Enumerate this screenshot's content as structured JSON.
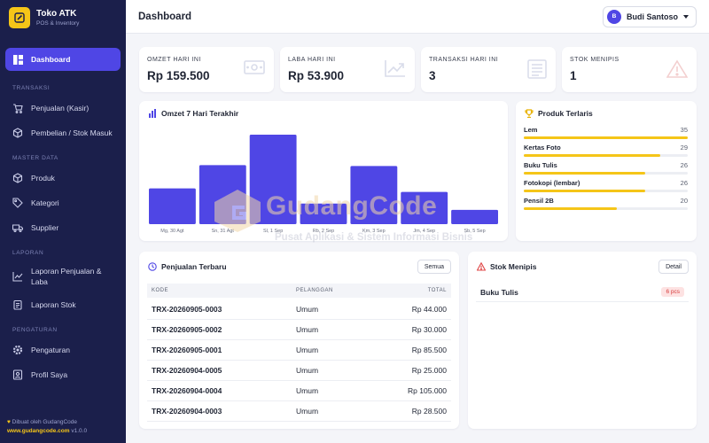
{
  "brand": {
    "name": "Toko ATK",
    "subtitle": "POS & Inventory"
  },
  "sidebar": {
    "dashboard": "Dashboard",
    "sections": {
      "transaksi": "TRANSAKSI",
      "master": "MASTER DATA",
      "laporan": "LAPORAN",
      "pengaturan": "PENGATURAN"
    },
    "items": {
      "penjualan": "Penjualan (Kasir)",
      "pembelian": "Pembelian / Stok Masuk",
      "produk": "Produk",
      "kategori": "Kategori",
      "supplier": "Supplier",
      "laporan_penjualan": "Laporan Penjualan & Laba",
      "laporan_stok": "Laporan Stok",
      "pengaturan": "Pengaturan",
      "profil": "Profil Saya"
    },
    "footer": {
      "made_by": "Dibuat oleh GudangCode",
      "link": "www.gudangcode.com",
      "version": "v1.0.0"
    }
  },
  "topbar": {
    "title": "Dashboard",
    "user_initial": "B",
    "user_name": "Budi Santoso"
  },
  "stats": [
    {
      "label": "OMZET HARI INI",
      "value": "Rp 159.500",
      "icon": "cash-icon"
    },
    {
      "label": "LABA HARI INI",
      "value": "Rp 53.900",
      "icon": "trend-icon"
    },
    {
      "label": "TRANSAKSI HARI INI",
      "value": "3",
      "icon": "receipt-icon"
    },
    {
      "label": "STOK MENIPIS",
      "value": "1",
      "icon": "warning-icon"
    }
  ],
  "omzet_chart": {
    "title": "Omzet 7 Hari Terakhir"
  },
  "chart_data": {
    "type": "bar",
    "categories": [
      "Mg, 30 Agt",
      "Sn, 31 Agt",
      "Sl, 1 Sep",
      "Rb, 2 Sep",
      "Km, 3 Sep",
      "Jm, 4 Sep",
      "Sb, 5 Sep"
    ],
    "values": [
      40,
      66,
      100,
      23,
      65,
      36,
      16
    ],
    "grid": false,
    "color": "#4f46e5"
  },
  "top_products": {
    "title": "Produk Terlaris",
    "items": [
      {
        "name": "Lem",
        "count": "35",
        "fraction": 1.0
      },
      {
        "name": "Kertas Foto",
        "count": "29",
        "fraction": 0.83
      },
      {
        "name": "Buku Tulis",
        "count": "26",
        "fraction": 0.74
      },
      {
        "name": "Fotokopi (lembar)",
        "count": "26",
        "fraction": 0.74
      },
      {
        "name": "Pensil 2B",
        "count": "20",
        "fraction": 0.57
      }
    ]
  },
  "sales": {
    "title": "Penjualan Terbaru",
    "button": "Semua",
    "columns": [
      "KODE",
      "PELANGGAN",
      "TOTAL"
    ],
    "rows": [
      {
        "code": "TRX-20260905-0003",
        "customer": "Umum",
        "total": "Rp 44.000"
      },
      {
        "code": "TRX-20260905-0002",
        "customer": "Umum",
        "total": "Rp 30.000"
      },
      {
        "code": "TRX-20260905-0001",
        "customer": "Umum",
        "total": "Rp 85.500"
      },
      {
        "code": "TRX-20260904-0005",
        "customer": "Umum",
        "total": "Rp 25.000"
      },
      {
        "code": "TRX-20260904-0004",
        "customer": "Umum",
        "total": "Rp 105.000"
      },
      {
        "code": "TRX-20260904-0003",
        "customer": "Umum",
        "total": "Rp 28.500"
      }
    ]
  },
  "low_stock": {
    "title": "Stok Menipis",
    "button": "Detail",
    "items": [
      {
        "name": "Buku Tulis",
        "badge": "6 pcs"
      }
    ]
  },
  "watermark": {
    "title": "GudangCode",
    "subtitle": "Pusat Aplikasi & Sistem Informasi Bisnis"
  },
  "colors": {
    "accent": "#4f46e5",
    "sidebar": "#1b1f4b",
    "warning": "#f5c518",
    "danger": "#e04848"
  }
}
